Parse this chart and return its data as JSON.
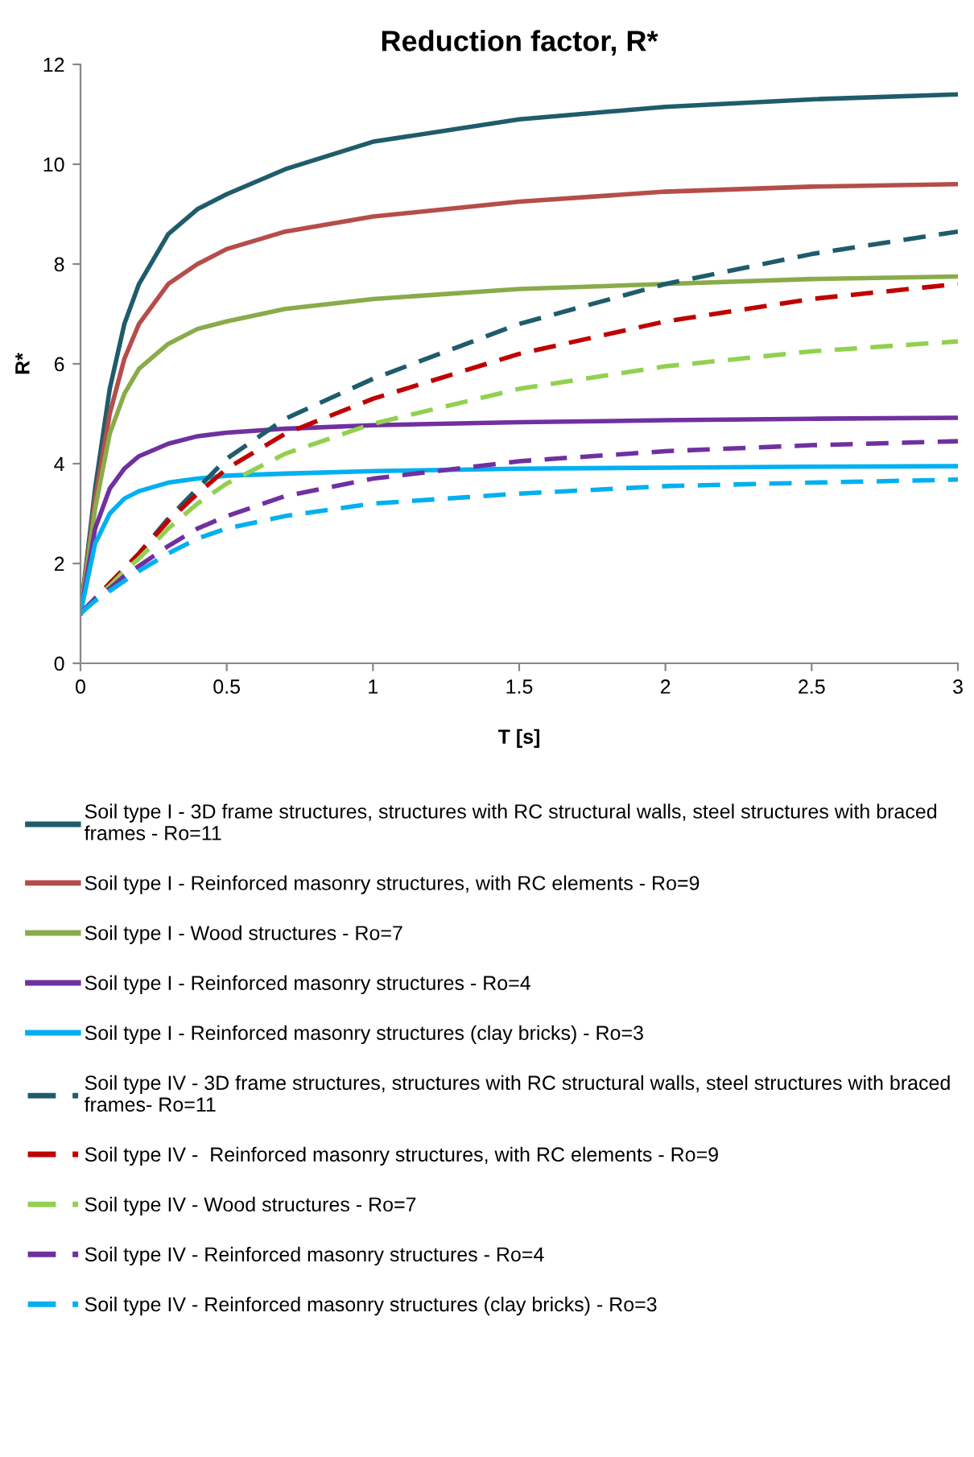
{
  "chart_data": {
    "type": "line",
    "title": "Reduction factor, R*",
    "xlabel": "T [s]",
    "ylabel": "R*",
    "x": [
      0,
      0.05,
      0.1,
      0.15,
      0.2,
      0.3,
      0.4,
      0.5,
      0.7,
      1,
      1.5,
      2,
      2.5,
      3
    ],
    "xlim": [
      0,
      3
    ],
    "xticks": [
      0,
      0.5,
      1,
      1.5,
      2,
      2.5,
      3
    ],
    "ylim": [
      0,
      12
    ],
    "yticks": [
      0,
      2,
      4,
      6,
      8,
      10,
      12
    ],
    "grid": false,
    "legend": "bottom",
    "marker": "none",
    "series": [
      {
        "name": "Soil type I - 3D frame structures, structures with RC structural walls, steel structures with braced frames - Ro=11",
        "color": "#1f5c6b",
        "line_style": "solid",
        "values": [
          1,
          3.5,
          5.5,
          6.8,
          7.6,
          8.6,
          9.1,
          9.4,
          9.9,
          10.45,
          10.9,
          11.15,
          11.3,
          11.4
        ]
      },
      {
        "name": "Soil type I - Reinforced masonry structures, with RC elements - Ro=9",
        "color": "#b54d4a",
        "line_style": "solid",
        "values": [
          1,
          3.3,
          5.0,
          6.1,
          6.8,
          7.6,
          8.0,
          8.3,
          8.65,
          8.95,
          9.25,
          9.45,
          9.55,
          9.6
        ]
      },
      {
        "name": "Soil type I - Wood structures - Ro=7",
        "color": "#8aab4a",
        "line_style": "solid",
        "values": [
          1,
          3.1,
          4.6,
          5.4,
          5.9,
          6.4,
          6.7,
          6.85,
          7.1,
          7.3,
          7.5,
          7.6,
          7.7,
          7.75
        ]
      },
      {
        "name": "Soil type I - Reinforced masonry structures - Ro=4",
        "color": "#7030a0",
        "line_style": "solid",
        "values": [
          1,
          2.7,
          3.5,
          3.9,
          4.15,
          4.4,
          4.55,
          4.62,
          4.7,
          4.77,
          4.83,
          4.87,
          4.9,
          4.92
        ]
      },
      {
        "name": "Soil type I - Reinforced masonry structures (clay bricks) - Ro=3",
        "color": "#00b0f0",
        "line_style": "solid",
        "values": [
          1,
          2.4,
          3.0,
          3.3,
          3.45,
          3.62,
          3.7,
          3.76,
          3.8,
          3.85,
          3.9,
          3.92,
          3.94,
          3.95
        ]
      },
      {
        "name": "Soil type IV - 3D frame structures, structures with RC structural walls, steel structures with braced frames- Ro=11",
        "color": "#1f5c6b",
        "line_style": "dashed",
        "values": [
          1,
          1.3,
          1.6,
          1.9,
          2.2,
          2.9,
          3.5,
          4.1,
          4.9,
          5.7,
          6.8,
          7.6,
          8.2,
          8.65
        ]
      },
      {
        "name": "Soil type IV -  Reinforced masonry structures, with RC elements - Ro=9",
        "color": "#c00000",
        "line_style": "dashed",
        "values": [
          1,
          1.3,
          1.6,
          1.9,
          2.2,
          2.85,
          3.4,
          3.9,
          4.6,
          5.3,
          6.2,
          6.85,
          7.3,
          7.6
        ]
      },
      {
        "name": "Soil type IV - Wood structures - Ro=7",
        "color": "#92d050",
        "line_style": "dashed",
        "values": [
          1,
          1.3,
          1.55,
          1.85,
          2.1,
          2.7,
          3.2,
          3.6,
          4.2,
          4.8,
          5.5,
          5.95,
          6.25,
          6.45
        ]
      },
      {
        "name": "Soil type IV - Reinforced masonry structures - Ro=4",
        "color": "#7030a0",
        "line_style": "dashed",
        "values": [
          1,
          1.3,
          1.5,
          1.75,
          1.95,
          2.35,
          2.7,
          2.95,
          3.35,
          3.7,
          4.05,
          4.25,
          4.37,
          4.45
        ]
      },
      {
        "name": "Soil type IV - Reinforced masonry structures (clay bricks) - Ro=3",
        "color": "#00b0f0",
        "line_style": "dashed",
        "values": [
          1,
          1.25,
          1.45,
          1.65,
          1.85,
          2.2,
          2.5,
          2.7,
          2.95,
          3.2,
          3.4,
          3.55,
          3.62,
          3.68
        ]
      }
    ]
  }
}
